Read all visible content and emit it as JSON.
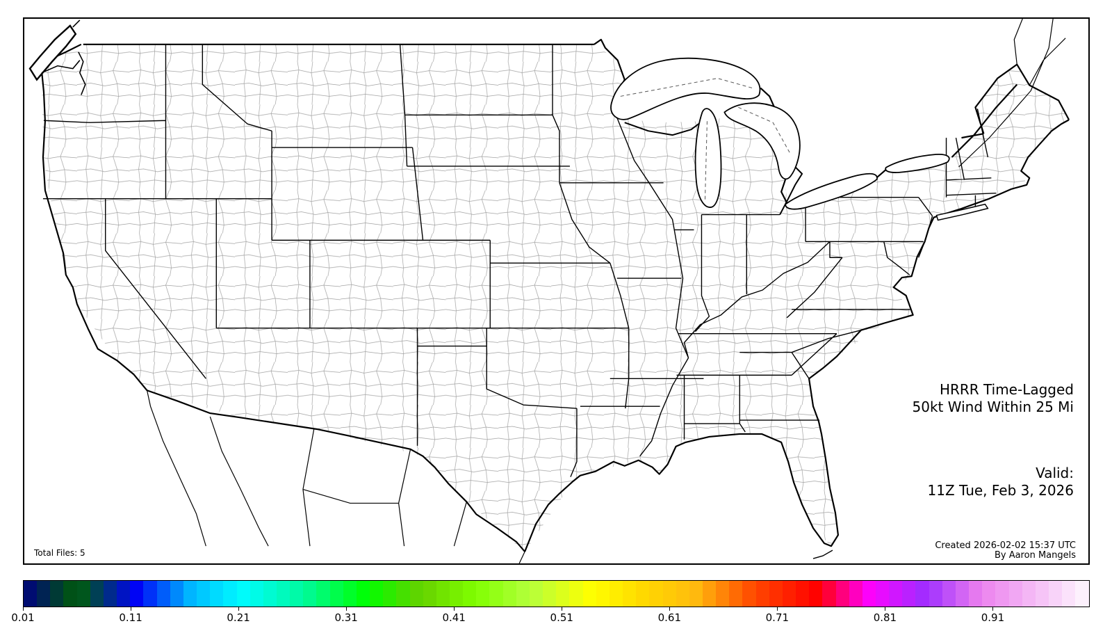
{
  "figure": {
    "title_line1": "HRRR Time-Lagged",
    "title_line2": "50kt Wind Within 25 Mi",
    "valid_label": "Valid:",
    "valid_time": "11Z Tue, Feb 3, 2026",
    "created_line1": "Created 2026-02-02 15:37 UTC",
    "created_line2": "By Aaron Mangels",
    "total_files_label": "Total Files: 5"
  },
  "map": {
    "region": "Continental United States with county and state boundaries",
    "county_line_color": "#a0a0a0",
    "state_line_color": "#000000",
    "coast_line_color": "#000000",
    "background_color": "#ffffff"
  },
  "colorbar": {
    "orientation": "horizontal",
    "min_value": 0.01,
    "max_value": 1.0,
    "segments": 80,
    "colormap_name": "gist_ncar",
    "tick_values": [
      0.01,
      0.11,
      0.21,
      0.31,
      0.41,
      0.51,
      0.61,
      0.71,
      0.81,
      0.91
    ],
    "tick_labels": [
      "0.01",
      "0.11",
      "0.21",
      "0.31",
      "0.41",
      "0.51",
      "0.61",
      "0.71",
      "0.81",
      "0.91"
    ],
    "stops": [
      [
        0.0,
        "#000080"
      ],
      [
        0.051,
        "#005f06"
      ],
      [
        0.105,
        "#0000f5"
      ],
      [
        0.157,
        "#00b8ff"
      ],
      [
        0.204,
        "#00fbff"
      ],
      [
        0.263,
        "#00fa9d"
      ],
      [
        0.322,
        "#00ff00"
      ],
      [
        0.373,
        "#66d100"
      ],
      [
        0.424,
        "#80ff00"
      ],
      [
        0.475,
        "#b4ff3c"
      ],
      [
        0.533,
        "#ffff00"
      ],
      [
        0.58,
        "#ffda00"
      ],
      [
        0.631,
        "#ffba0e"
      ],
      [
        0.686,
        "#ff4700"
      ],
      [
        0.745,
        "#ff0000"
      ],
      [
        0.792,
        "#ff00f8"
      ],
      [
        0.8,
        "#f207ff"
      ],
      [
        0.847,
        "#9e2eff"
      ],
      [
        0.898,
        "#eb80ee"
      ],
      [
        0.95,
        "#f5bdf6"
      ],
      [
        1.0,
        "#fef8fe"
      ]
    ]
  },
  "chart_data": {
    "type": "heatmap",
    "title": "HRRR Time-Lagged 50kt Wind Within 25 Mi",
    "legend_ticks": [
      0.01,
      0.11,
      0.21,
      0.31,
      0.41,
      0.51,
      0.61,
      0.71,
      0.81,
      0.91
    ],
    "legend_range": [
      0.01,
      1.0
    ],
    "notes": "Probability shading legend shown; no shaded probability contours visible on map for this valid time"
  }
}
